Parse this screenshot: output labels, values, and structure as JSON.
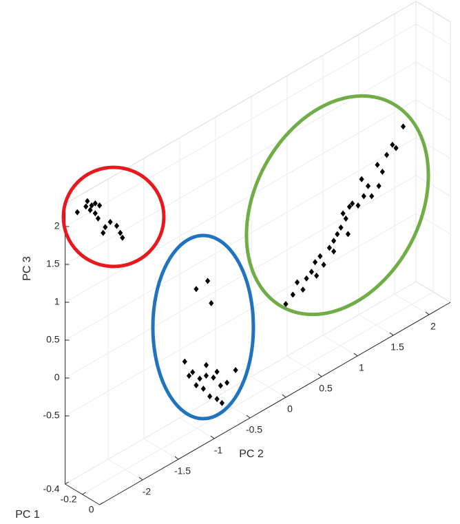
{
  "chart_data": {
    "type": "scatter3d",
    "xlabel": "PC 1",
    "ylabel": "PC 2",
    "zlabel": "PC 3",
    "xlim": [
      -0.4,
      0
    ],
    "ylim": [
      -2.6,
      2.3
    ],
    "zlim": [
      -1.4,
      2.3
    ],
    "xticks": [
      -0.4,
      -0.2,
      0
    ],
    "yticks": [
      -2,
      -1.5,
      -1,
      -0.5,
      0,
      0.5,
      1,
      1.5,
      2
    ],
    "zticks": [
      -0.5,
      0,
      0.5,
      1,
      1.5,
      2
    ],
    "grid": true,
    "color": "#000000",
    "x": [
      -0.3,
      -0.3,
      -0.3,
      -0.3,
      -0.3,
      -0.3,
      -0.3,
      -0.3,
      -0.3,
      -0.3,
      -0.3,
      -0.3,
      -0.3,
      -0.3,
      -0.3,
      -0.3,
      -0.3,
      -0.3,
      -0.3,
      -0.3,
      -0.3,
      -0.3,
      -0.3,
      -0.3,
      -0.3,
      -0.3,
      -0.3,
      -0.3,
      -0.3,
      -0.3,
      -0.3,
      -0.3,
      -0.3,
      -0.3,
      -0.3,
      -0.3,
      -0.3,
      -0.3,
      -0.3,
      -0.3,
      -0.3,
      -0.3,
      -0.3,
      -0.3,
      -0.3,
      -0.3,
      -0.3,
      -0.3,
      -0.3,
      -0.3,
      -0.3,
      -0.3,
      -0.3,
      -0.3,
      -0.3,
      -0.3,
      -0.3,
      -0.3,
      -0.3,
      -0.3,
      -0.3,
      -0.3,
      -0.3,
      -0.3,
      -0.3,
      -0.3
    ],
    "y": [
      -2.55,
      -2.41,
      -2.43,
      -2.35,
      -2.3,
      -2.24,
      -2.37,
      -2.3,
      -2.26,
      -2.16,
      -2.09,
      -2.0,
      -1.95,
      -1.92,
      -2.19,
      -0.89,
      -0.73,
      -0.68,
      -1.05,
      -0.94,
      -0.84,
      -0.75,
      -0.65,
      -0.55,
      -0.79,
      -0.7,
      -0.6,
      -0.53,
      -0.89,
      -0.46,
      -0.34,
      -0.99,
      -0.75,
      -0.6,
      0.36,
      0.46,
      0.52,
      0.6,
      0.65,
      0.72,
      0.77,
      0.84,
      0.89,
      0.97,
      1.03,
      1.08,
      1.13,
      1.2,
      1.25,
      1.29,
      1.37,
      1.45,
      1.51,
      1.56,
      1.64,
      1.71,
      1.77,
      1.85,
      1.9,
      2.0,
      1.23,
      1.03,
      0.79,
      1.42,
      1.66,
      1.16
    ],
    "z": [
      2.23,
      2.3,
      2.24,
      2.21,
      2.21,
      2.15,
      2.16,
      2.08,
      1.99,
      1.82,
      1.85,
      1.75,
      1.63,
      1.55,
      1.76,
      0.31,
      0.33,
      0.01,
      -0.56,
      -0.76,
      -0.9,
      -0.91,
      -0.99,
      -1.15,
      -1.06,
      -1.21,
      -1.3,
      -1.39,
      -0.96,
      -1.16,
      -1.06,
      -0.78,
      -0.77,
      -0.94,
      -0.57,
      -0.5,
      -0.37,
      -0.51,
      -0.39,
      -0.34,
      -0.24,
      -0.2,
      -0.34,
      -0.16,
      -0.1,
      -0.04,
      0.02,
      0.1,
      0.23,
      0.25,
      0.18,
      0.26,
      0.36,
      0.2,
      0.57,
      0.44,
      0.63,
      0.72,
      0.65,
      0.88,
      -0.12,
      -0.24,
      -0.43,
      0.5,
      0.28,
      0.19
    ]
  }
}
